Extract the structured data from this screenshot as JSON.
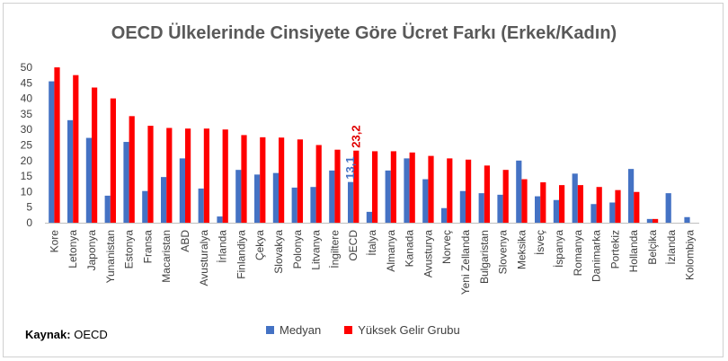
{
  "chart_data": {
    "type": "bar",
    "title": "OECD Ülkelerinde Cinsiyete Göre Ücret Farkı (Erkek/Kadın)",
    "ylim": [
      0,
      50
    ],
    "yticks": [
      0,
      5,
      10,
      15,
      20,
      25,
      30,
      35,
      40,
      45,
      50
    ],
    "grid": false,
    "legend_position": "bottom",
    "categories": [
      "Kore",
      "Letonya",
      "Japonya",
      "Yunanistan",
      "Estonya",
      "Fransa",
      "Macaristan",
      "ABD",
      "Avusturalya",
      "İrlanda",
      "Finlandiya",
      "Çekya",
      "Slovakya",
      "Polonya",
      "Litvanya",
      "İngiltere",
      "OECD",
      "İtalya",
      "Almanya",
      "Kanada",
      "Avusturya",
      "Norveç",
      "Yeni Zellanda",
      "Bulgaristan",
      "Slovenya",
      "Meksika",
      "İsveç",
      "İspanya",
      "Romanya",
      "Danimarka",
      "Portekiz",
      "Hollanda",
      "Belçika",
      "İzlanda",
      "Kolombiya"
    ],
    "series": [
      {
        "name": "Medyan",
        "color": "#4472C4",
        "values": [
          45.5,
          33,
          27.3,
          8.7,
          26,
          10.2,
          14.7,
          20.7,
          11,
          2,
          17,
          15.5,
          16,
          11.3,
          11.5,
          16.8,
          13.1,
          3.5,
          16.8,
          20.7,
          14,
          4.7,
          10.2,
          9.5,
          9,
          20,
          8.5,
          7.3,
          15.8,
          6,
          6.5,
          17.3,
          1.2,
          9.5,
          1.8
        ]
      },
      {
        "name": "Yüksek Gelir Grubu",
        "color": "#FF0000",
        "values": [
          50,
          47.5,
          43.5,
          40,
          34.3,
          31.2,
          30.5,
          30.3,
          30.3,
          30,
          28.2,
          27.5,
          27.4,
          26.8,
          25,
          23.5,
          23.2,
          23,
          23,
          22.6,
          21.5,
          20.7,
          20.3,
          18.4,
          17,
          14,
          13,
          12.1,
          12.1,
          11.5,
          10.5,
          9.9,
          1.2,
          null,
          null
        ]
      }
    ],
    "annotations": [
      {
        "category": "OECD",
        "series": "Medyan",
        "text": "13,1",
        "color": "#4472C4"
      },
      {
        "category": "OECD",
        "series": "Yüksek Gelir Grubu",
        "text": "23,2",
        "color": "#E00000"
      }
    ]
  },
  "source": {
    "label": "Kaynak:",
    "value": "OECD"
  }
}
